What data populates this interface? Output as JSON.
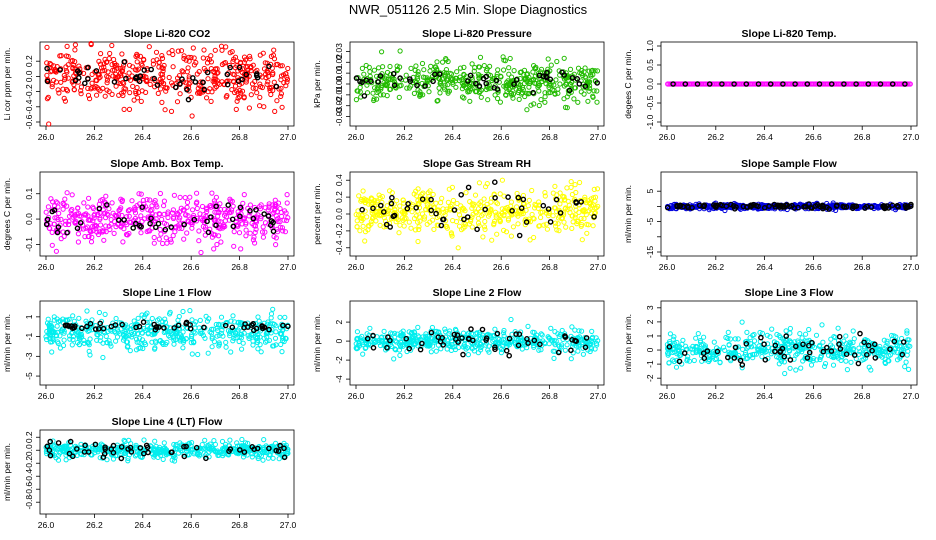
{
  "figure_title": "NWR_051126  2.5 Min. Slope Diagnostics",
  "colors": {
    "red": "#ff0000",
    "green": "#22bb00",
    "magenta": "#ff00ff",
    "yellow": "#ffff00",
    "blue": "#0000dd",
    "cyan": "#00eeee",
    "highlight": "#000000"
  },
  "chart_data": [
    {
      "type": "scatter",
      "title": "Slope Li-820 CO2",
      "ylabel": "Li cor ppm per min.",
      "xlim": [
        26.0,
        27.0
      ],
      "xticks": [
        "26.0",
        "26.2",
        "26.4",
        "26.6",
        "26.8",
        "27.0"
      ],
      "ylim": [
        -0.6,
        0.4
      ],
      "yticks": [
        -0.6,
        -0.4,
        -0.2,
        0.0,
        0.2
      ],
      "yticklabels": [
        "-0.6",
        "-0.4",
        "-0.2",
        "0.0",
        "0.2"
      ],
      "series": [
        {
          "color": "red",
          "points_summary": {
            "count": 480,
            "center": 0.0,
            "spread": 0.18
          }
        },
        {
          "color": "highlight",
          "points_summary": {
            "count": 45,
            "center": -0.02,
            "spread": 0.1
          }
        }
      ]
    },
    {
      "type": "scatter",
      "title": "Slope Li-820 Pressure",
      "ylabel": "kPa per min.",
      "xlim": [
        26.0,
        27.0
      ],
      "xticks": [
        "26.0",
        "26.2",
        "26.4",
        "26.6",
        "26.8",
        "27.0"
      ],
      "ylim": [
        -0.035,
        0.035
      ],
      "yticks": [
        -0.03,
        -0.02,
        -0.01,
        0.0,
        0.01,
        0.02,
        0.03
      ],
      "yticklabels": [
        "-0.03",
        "-0.02",
        "-0.01",
        "0.00",
        "0.01",
        "0.02",
        "0.03"
      ],
      "series": [
        {
          "color": "green",
          "points_summary": {
            "count": 480,
            "center": 0.002,
            "spread": 0.009
          }
        },
        {
          "color": "highlight",
          "points_summary": {
            "count": 45,
            "center": 0.0,
            "spread": 0.006
          }
        }
      ]
    },
    {
      "type": "scatter",
      "title": "Slope Li-820 Temp.",
      "ylabel": "degees C per min.",
      "xlim": [
        26.0,
        27.0
      ],
      "xticks": [
        "26.0",
        "26.2",
        "26.4",
        "26.6",
        "26.8",
        "27.0"
      ],
      "ylim": [
        -1.0,
        1.0
      ],
      "yticks": [
        -1.0,
        -0.5,
        0.0,
        0.5,
        1.0
      ],
      "yticklabels": [
        "-1.0",
        "-0.5",
        "0.0",
        "0.5",
        "1.0"
      ],
      "series": [
        {
          "color": "magenta",
          "points_summary": {
            "count": 180,
            "center": 0.0,
            "spread": 0.0
          }
        },
        {
          "color": "highlight",
          "points_summary": {
            "count": 20,
            "center": 0.0,
            "spread": 0.0
          }
        }
      ]
    },
    {
      "type": "scatter",
      "title": "Slope Amb. Box Temp.",
      "ylabel": "degrees C per min.",
      "xlim": [
        26.0,
        27.0
      ],
      "xticks": [
        "26.0",
        "26.2",
        "26.4",
        "26.6",
        "26.8",
        "27.0"
      ],
      "ylim": [
        -0.13,
        0.17
      ],
      "yticks": [
        -0.1,
        0.0,
        0.1
      ],
      "yticklabels": [
        "-0.1",
        "0.0",
        "0.1"
      ],
      "series": [
        {
          "color": "magenta",
          "points_summary": {
            "count": 480,
            "center": 0.0,
            "spread": 0.045
          }
        },
        {
          "color": "highlight",
          "points_summary": {
            "count": 45,
            "center": -0.01,
            "spread": 0.035
          }
        }
      ]
    },
    {
      "type": "scatter",
      "title": "Slope Gas Stream RH",
      "ylabel": "percent per min.",
      "xlim": [
        26.0,
        27.0
      ],
      "xticks": [
        "26.0",
        "26.2",
        "26.4",
        "26.6",
        "26.8",
        "27.0"
      ],
      "ylim": [
        -0.45,
        0.45
      ],
      "yticks": [
        -0.4,
        -0.2,
        0.0,
        0.2,
        0.4
      ],
      "yticklabels": [
        "-0.4",
        "-0.2",
        "0.0",
        "0.2",
        "0.4"
      ],
      "series": [
        {
          "color": "yellow",
          "points_summary": {
            "count": 480,
            "center": 0.02,
            "spread": 0.14
          }
        },
        {
          "color": "highlight",
          "points_summary": {
            "count": 45,
            "center": 0.0,
            "spread": 0.12
          }
        }
      ]
    },
    {
      "type": "scatter",
      "title": "Slope Sample Flow",
      "ylabel": "ml/min per min.",
      "xlim": [
        26.0,
        27.0
      ],
      "xticks": [
        "26.0",
        "26.2",
        "26.4",
        "26.6",
        "26.8",
        "27.0"
      ],
      "ylim": [
        -15,
        10
      ],
      "yticks": [
        -15,
        -10,
        -5,
        0,
        5
      ],
      "yticklabels": [
        "-15",
        "",
        "-5",
        "",
        "5"
      ],
      "series": [
        {
          "color": "blue",
          "points_summary": {
            "count": 480,
            "center": 0.0,
            "spread": 0.4
          }
        },
        {
          "color": "highlight",
          "points_summary": {
            "count": 100,
            "center": 0.0,
            "spread": 0.3
          }
        }
      ]
    },
    {
      "type": "scatter",
      "title": "Slope Line 1 Flow",
      "ylabel": "ml/min per min.",
      "xlim": [
        26.0,
        27.0
      ],
      "xticks": [
        "26.0",
        "26.2",
        "26.4",
        "26.6",
        "26.8",
        "27.0"
      ],
      "ylim": [
        -5.5,
        2.2
      ],
      "yticks": [
        -5,
        -3,
        -1,
        1
      ],
      "yticklabels": [
        "-5",
        "-3",
        "-1",
        "1"
      ],
      "series": [
        {
          "color": "cyan",
          "points_summary": {
            "count": 480,
            "center": -0.6,
            "spread": 0.9
          }
        },
        {
          "color": "highlight",
          "points_summary": {
            "count": 50,
            "center": 0.0,
            "spread": 0.2
          }
        }
      ]
    },
    {
      "type": "scatter",
      "title": "Slope Line 2 Flow",
      "ylabel": "ml/min per min.",
      "xlim": [
        26.0,
        27.0
      ],
      "xticks": [
        "26.0",
        "26.2",
        "26.4",
        "26.6",
        "26.8",
        "27.0"
      ],
      "ylim": [
        -4.2,
        3.8
      ],
      "yticks": [
        -4,
        -2,
        0,
        2
      ],
      "yticklabels": [
        "-4",
        "-2",
        "0",
        "2"
      ],
      "series": [
        {
          "color": "cyan",
          "points_summary": {
            "count": 480,
            "center": 0.0,
            "spread": 0.6
          }
        },
        {
          "color": "highlight",
          "points_summary": {
            "count": 50,
            "center": 0.0,
            "spread": 0.6
          }
        }
      ]
    },
    {
      "type": "scatter",
      "title": "Slope Line 3 Flow",
      "ylabel": "ml/min per min.",
      "xlim": [
        26.0,
        27.0
      ],
      "xticks": [
        "26.0",
        "26.2",
        "26.4",
        "26.6",
        "26.8",
        "27.0"
      ],
      "ylim": [
        -2.2,
        3.2
      ],
      "yticks": [
        -2,
        -1,
        0,
        1,
        2,
        3
      ],
      "yticklabels": [
        "-2",
        "-1",
        "0",
        "1",
        "2",
        "3"
      ],
      "series": [
        {
          "color": "cyan",
          "points_summary": {
            "count": 480,
            "center": 0.0,
            "spread": 0.6
          }
        },
        {
          "color": "highlight",
          "points_summary": {
            "count": 50,
            "center": 0.0,
            "spread": 0.5
          }
        }
      ]
    },
    {
      "type": "scatter",
      "title": "Slope Line 4 (LT) Flow",
      "ylabel": "ml/min per min.",
      "xlim": [
        26.0,
        27.0
      ],
      "xticks": [
        "26.0",
        "26.2",
        "26.4",
        "26.6",
        "26.8",
        "27.0"
      ],
      "ylim": [
        -0.92,
        0.25
      ],
      "yticks": [
        -0.8,
        -0.6,
        -0.4,
        -0.2,
        0.0,
        0.2
      ],
      "yticklabels": [
        "-0.8",
        "-0.6",
        "-0.4",
        "-0.2",
        "0.0",
        "0.2"
      ],
      "series": [
        {
          "color": "cyan",
          "points_summary": {
            "count": 480,
            "center": 0.0,
            "spread": 0.06
          }
        },
        {
          "color": "highlight",
          "points_summary": {
            "count": 50,
            "center": 0.0,
            "spread": 0.06
          }
        }
      ]
    }
  ]
}
